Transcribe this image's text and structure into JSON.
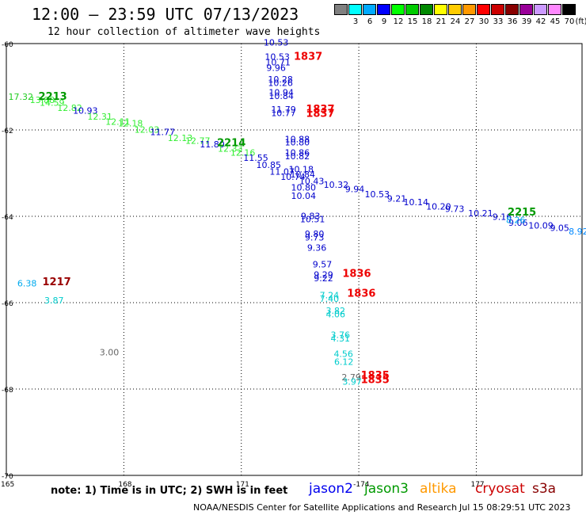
{
  "header": {
    "title": "12:00 – 23:59 UTC 07/13/2023",
    "subtitle": "12 hour collection of altimeter wave heights"
  },
  "colorbar": {
    "unit_label": "(ft)",
    "cells": [
      {
        "color": "#808080",
        "label": ""
      },
      {
        "color": "#00ffff",
        "label": "3"
      },
      {
        "color": "#00aaff",
        "label": "6"
      },
      {
        "color": "#0000ff",
        "label": "9"
      },
      {
        "color": "#00ff00",
        "label": "12"
      },
      {
        "color": "#00cc00",
        "label": "15"
      },
      {
        "color": "#008800",
        "label": "18"
      },
      {
        "color": "#ffff00",
        "label": "21"
      },
      {
        "color": "#ffcc00",
        "label": "24"
      },
      {
        "color": "#ff9900",
        "label": "27"
      },
      {
        "color": "#ff0000",
        "label": "30"
      },
      {
        "color": "#cc0000",
        "label": "33"
      },
      {
        "color": "#880000",
        "label": "36"
      },
      {
        "color": "#990099",
        "label": "39"
      },
      {
        "color": "#cc99ff",
        "label": "42"
      },
      {
        "color": "#ff88ff",
        "label": "45"
      },
      {
        "color": "#000000",
        "label": "70"
      }
    ]
  },
  "axes": {
    "lat_ticks": [
      "-60",
      "-62",
      "-64",
      "-66",
      "-68",
      "-70"
    ],
    "lon_ticks": [
      "165",
      "168",
      "171",
      "-174",
      "177"
    ],
    "grid": "dotted"
  },
  "observations": [
    {
      "text": "10.53",
      "color": "#0000cc",
      "lat": -60.05,
      "lon": 171.57
    },
    {
      "text": "10.53",
      "color": "#0000cc",
      "lat": -60.38,
      "lon": 171.6
    },
    {
      "text": "10.71",
      "color": "#0000cc",
      "lat": -60.5,
      "lon": 171.62
    },
    {
      "text": "9.96",
      "color": "#0000cc",
      "lat": -60.63,
      "lon": 171.64
    },
    {
      "text": "10.28",
      "color": "#0000cc",
      "lat": -60.9,
      "lon": 171.68
    },
    {
      "text": "10.26",
      "color": "#0000cc",
      "lat": -60.98,
      "lon": 171.68
    },
    {
      "text": "10.94",
      "color": "#0000cc",
      "lat": -61.2,
      "lon": 171.7
    },
    {
      "text": "10.84",
      "color": "#0000cc",
      "lat": -61.28,
      "lon": 171.7
    },
    {
      "text": "11.79",
      "color": "#0000cc",
      "lat": -61.6,
      "lon": 171.76
    },
    {
      "text": "10.77",
      "color": "#0000cc",
      "lat": -61.68,
      "lon": 171.76
    },
    {
      "text": "10.88",
      "color": "#0000cc",
      "lat": -62.28,
      "lon": 172.11
    },
    {
      "text": "10.80",
      "color": "#0000cc",
      "lat": -62.36,
      "lon": 172.11
    },
    {
      "text": "10.86",
      "color": "#0000cc",
      "lat": -62.6,
      "lon": 172.11
    },
    {
      "text": "10.82",
      "color": "#0000cc",
      "lat": -62.68,
      "lon": 172.11
    },
    {
      "text": "10.18",
      "color": "#0000cc",
      "lat": -62.98,
      "lon": 172.21
    },
    {
      "text": "11.07",
      "color": "#0000cc",
      "lat": -63.04,
      "lon": 171.72
    },
    {
      "text": "10.84",
      "color": "#0000cc",
      "lat": -63.1,
      "lon": 172.25
    },
    {
      "text": "10.74",
      "color": "#0000cc",
      "lat": -63.16,
      "lon": 172.0
    },
    {
      "text": "10.43",
      "color": "#0000cc",
      "lat": -63.26,
      "lon": 172.48
    },
    {
      "text": "10.32",
      "color": "#0000cc",
      "lat": -63.34,
      "lon": 173.1
    },
    {
      "text": "10.80",
      "color": "#0000cc",
      "lat": -63.4,
      "lon": 172.27
    },
    {
      "text": "9.94",
      "color": "#0000cc",
      "lat": -63.44,
      "lon": 173.65
    },
    {
      "text": "10.53",
      "color": "#0000cc",
      "lat": -63.56,
      "lon": 174.15
    },
    {
      "text": "10.04",
      "color": "#0000cc",
      "lat": -63.6,
      "lon": 172.27
    },
    {
      "text": "9.21",
      "color": "#0000cc",
      "lat": -63.66,
      "lon": 174.72
    },
    {
      "text": "10.14",
      "color": "#0000cc",
      "lat": -63.74,
      "lon": 175.14
    },
    {
      "text": "10.20",
      "color": "#0000cc",
      "lat": -63.84,
      "lon": 175.72
    },
    {
      "text": "9.73",
      "color": "#0000cc",
      "lat": -63.9,
      "lon": 176.2
    },
    {
      "text": "10.21",
      "color": "#0000cc",
      "lat": -64.0,
      "lon": 176.79
    },
    {
      "text": "9.16",
      "color": "#0000cc",
      "lat": -64.08,
      "lon": 177.41
    },
    {
      "text": "9.06",
      "color": "#0000cc",
      "lat": -64.22,
      "lon": 177.82
    },
    {
      "text": "10.09",
      "color": "#0000cc",
      "lat": -64.28,
      "lon": 178.33
    },
    {
      "text": "9.05",
      "color": "#0000cc",
      "lat": -64.34,
      "lon": 178.88
    },
    {
      "text": "8.92",
      "color": "#0088ff",
      "lat": -64.42,
      "lon": 179.36
    },
    {
      "text": "8.26",
      "color": "#00aaee",
      "lat": -64.16,
      "lon": 177.76
    },
    {
      "text": "9.83",
      "color": "#0000cc",
      "lat": -64.06,
      "lon": 172.52
    },
    {
      "text": "10.51",
      "color": "#0000cc",
      "lat": -64.14,
      "lon": 172.5
    },
    {
      "text": "9.80",
      "color": "#0000cc",
      "lat": -64.48,
      "lon": 172.62
    },
    {
      "text": "9.73",
      "color": "#0000cc",
      "lat": -64.56,
      "lon": 172.62
    },
    {
      "text": "9.36",
      "color": "#0000cc",
      "lat": -64.8,
      "lon": 172.68
    },
    {
      "text": "9.57",
      "color": "#0000cc",
      "lat": -65.18,
      "lon": 172.82
    },
    {
      "text": "9.29",
      "color": "#0000cc",
      "lat": -65.42,
      "lon": 172.85
    },
    {
      "text": "9.22",
      "color": "#0000cc",
      "lat": -65.5,
      "lon": 172.85
    },
    {
      "text": "7.24",
      "color": "#00cccc",
      "lat": -65.9,
      "lon": 173.0
    },
    {
      "text": "7.40",
      "color": "#00cccc",
      "lat": -65.98,
      "lon": 173.0
    },
    {
      "text": "3.82",
      "color": "#00cccc",
      "lat": -66.26,
      "lon": 173.16
    },
    {
      "text": "4.06",
      "color": "#00cccc",
      "lat": -66.34,
      "lon": 173.16
    },
    {
      "text": "3.76",
      "color": "#00cccc",
      "lat": -66.82,
      "lon": 173.28
    },
    {
      "text": "4.31",
      "color": "#00cccc",
      "lat": -66.9,
      "lon": 173.28
    },
    {
      "text": "4.56",
      "color": "#00cccc",
      "lat": -67.26,
      "lon": 173.36
    },
    {
      "text": "6.12",
      "color": "#00cccc",
      "lat": -67.44,
      "lon": 173.37
    },
    {
      "text": "2.79",
      "color": "#666666",
      "lat": -67.8,
      "lon": 173.56
    },
    {
      "text": "3.97",
      "color": "#00cccc",
      "lat": -67.9,
      "lon": 173.58
    },
    {
      "text": "6.38",
      "color": "#00aaee",
      "lat": -65.62,
      "lon": 165.28
    },
    {
      "text": "3.87",
      "color": "#00cccc",
      "lat": -66.02,
      "lon": 165.97
    },
    {
      "text": "3.00",
      "color": "#666666",
      "lat": -67.22,
      "lon": 167.38
    },
    {
      "text": "17.32",
      "color": "#22cc22",
      "lat": -61.3,
      "lon": 165.05
    },
    {
      "text": "13.88",
      "color": "#33ee33",
      "lat": -61.38,
      "lon": 165.6
    },
    {
      "text": "14.59",
      "color": "#33ee33",
      "lat": -61.44,
      "lon": 165.85
    },
    {
      "text": "12.82",
      "color": "#33ee33",
      "lat": -61.56,
      "lon": 166.3
    },
    {
      "text": "10.93",
      "color": "#0000cc",
      "lat": -61.62,
      "lon": 166.7
    },
    {
      "text": "12.31",
      "color": "#33ee33",
      "lat": -61.76,
      "lon": 167.07
    },
    {
      "text": "12.11",
      "color": "#33ee33",
      "lat": -61.88,
      "lon": 167.53
    },
    {
      "text": "12.18",
      "color": "#33ee33",
      "lat": -61.92,
      "lon": 167.85
    },
    {
      "text": "12.03",
      "color": "#33ee33",
      "lat": -62.06,
      "lon": 168.27
    },
    {
      "text": "11.77",
      "color": "#0000cc",
      "lat": -62.12,
      "lon": 168.67
    },
    {
      "text": "12.13",
      "color": "#33ee33",
      "lat": -62.26,
      "lon": 169.12
    },
    {
      "text": "12.77",
      "color": "#33ee33",
      "lat": -62.32,
      "lon": 169.57
    },
    {
      "text": "11.80",
      "color": "#0000cc",
      "lat": -62.4,
      "lon": 169.94
    },
    {
      "text": "12.33",
      "color": "#33ee33",
      "lat": -62.5,
      "lon": 170.4
    },
    {
      "text": "12.16",
      "color": "#33ee33",
      "lat": -62.6,
      "lon": 170.72
    },
    {
      "text": "11.55",
      "color": "#0000cc",
      "lat": -62.72,
      "lon": 171.05
    },
    {
      "text": "10.85",
      "color": "#0000cc",
      "lat": -62.88,
      "lon": 171.38
    }
  ],
  "pass_times": [
    {
      "text": "1837",
      "color": "#ee0000",
      "lat": -60.38,
      "lon": 172.34
    },
    {
      "text": "1837",
      "color": "#ee0000",
      "lat": -61.6,
      "lon": 172.65
    },
    {
      "text": "1837",
      "color": "#ee0000",
      "lat": -61.7,
      "lon": 172.65
    },
    {
      "text": "2213",
      "color": "#009900",
      "lat": -61.3,
      "lon": 165.82
    },
    {
      "text": "2214",
      "color": "#009900",
      "lat": -62.38,
      "lon": 170.38
    },
    {
      "text": "2215",
      "color": "#009900",
      "lat": -63.98,
      "lon": 177.8
    },
    {
      "text": "1836",
      "color": "#ee0000",
      "lat": -65.4,
      "lon": 173.58
    },
    {
      "text": "1836",
      "color": "#ee0000",
      "lat": -65.86,
      "lon": 173.7
    },
    {
      "text": "1217",
      "color": "#990000",
      "lat": -65.6,
      "lon": 165.92
    },
    {
      "text": "1835",
      "color": "#ee0000",
      "lat": -67.76,
      "lon": 174.05
    },
    {
      "text": "1835",
      "color": "#ee0000",
      "lat": -67.86,
      "lon": 174.05
    }
  ],
  "footer": {
    "note": "note: 1) Time is in UTC; 2) SWH is in feet",
    "legend": [
      {
        "name": "jason2",
        "color": "#0000ee"
      },
      {
        "name": "jason3",
        "color": "#009900"
      },
      {
        "name": "altika",
        "color": "#ff9900"
      },
      {
        "name": "cryosat",
        "color": "#cc0000"
      },
      {
        "name": "s3a",
        "color": "#880000"
      }
    ],
    "credit": "NOAA/NESDIS Center for Satellite Applications and Research",
    "timestamp": "Jul 15 08:29:51 UTC 2023"
  }
}
